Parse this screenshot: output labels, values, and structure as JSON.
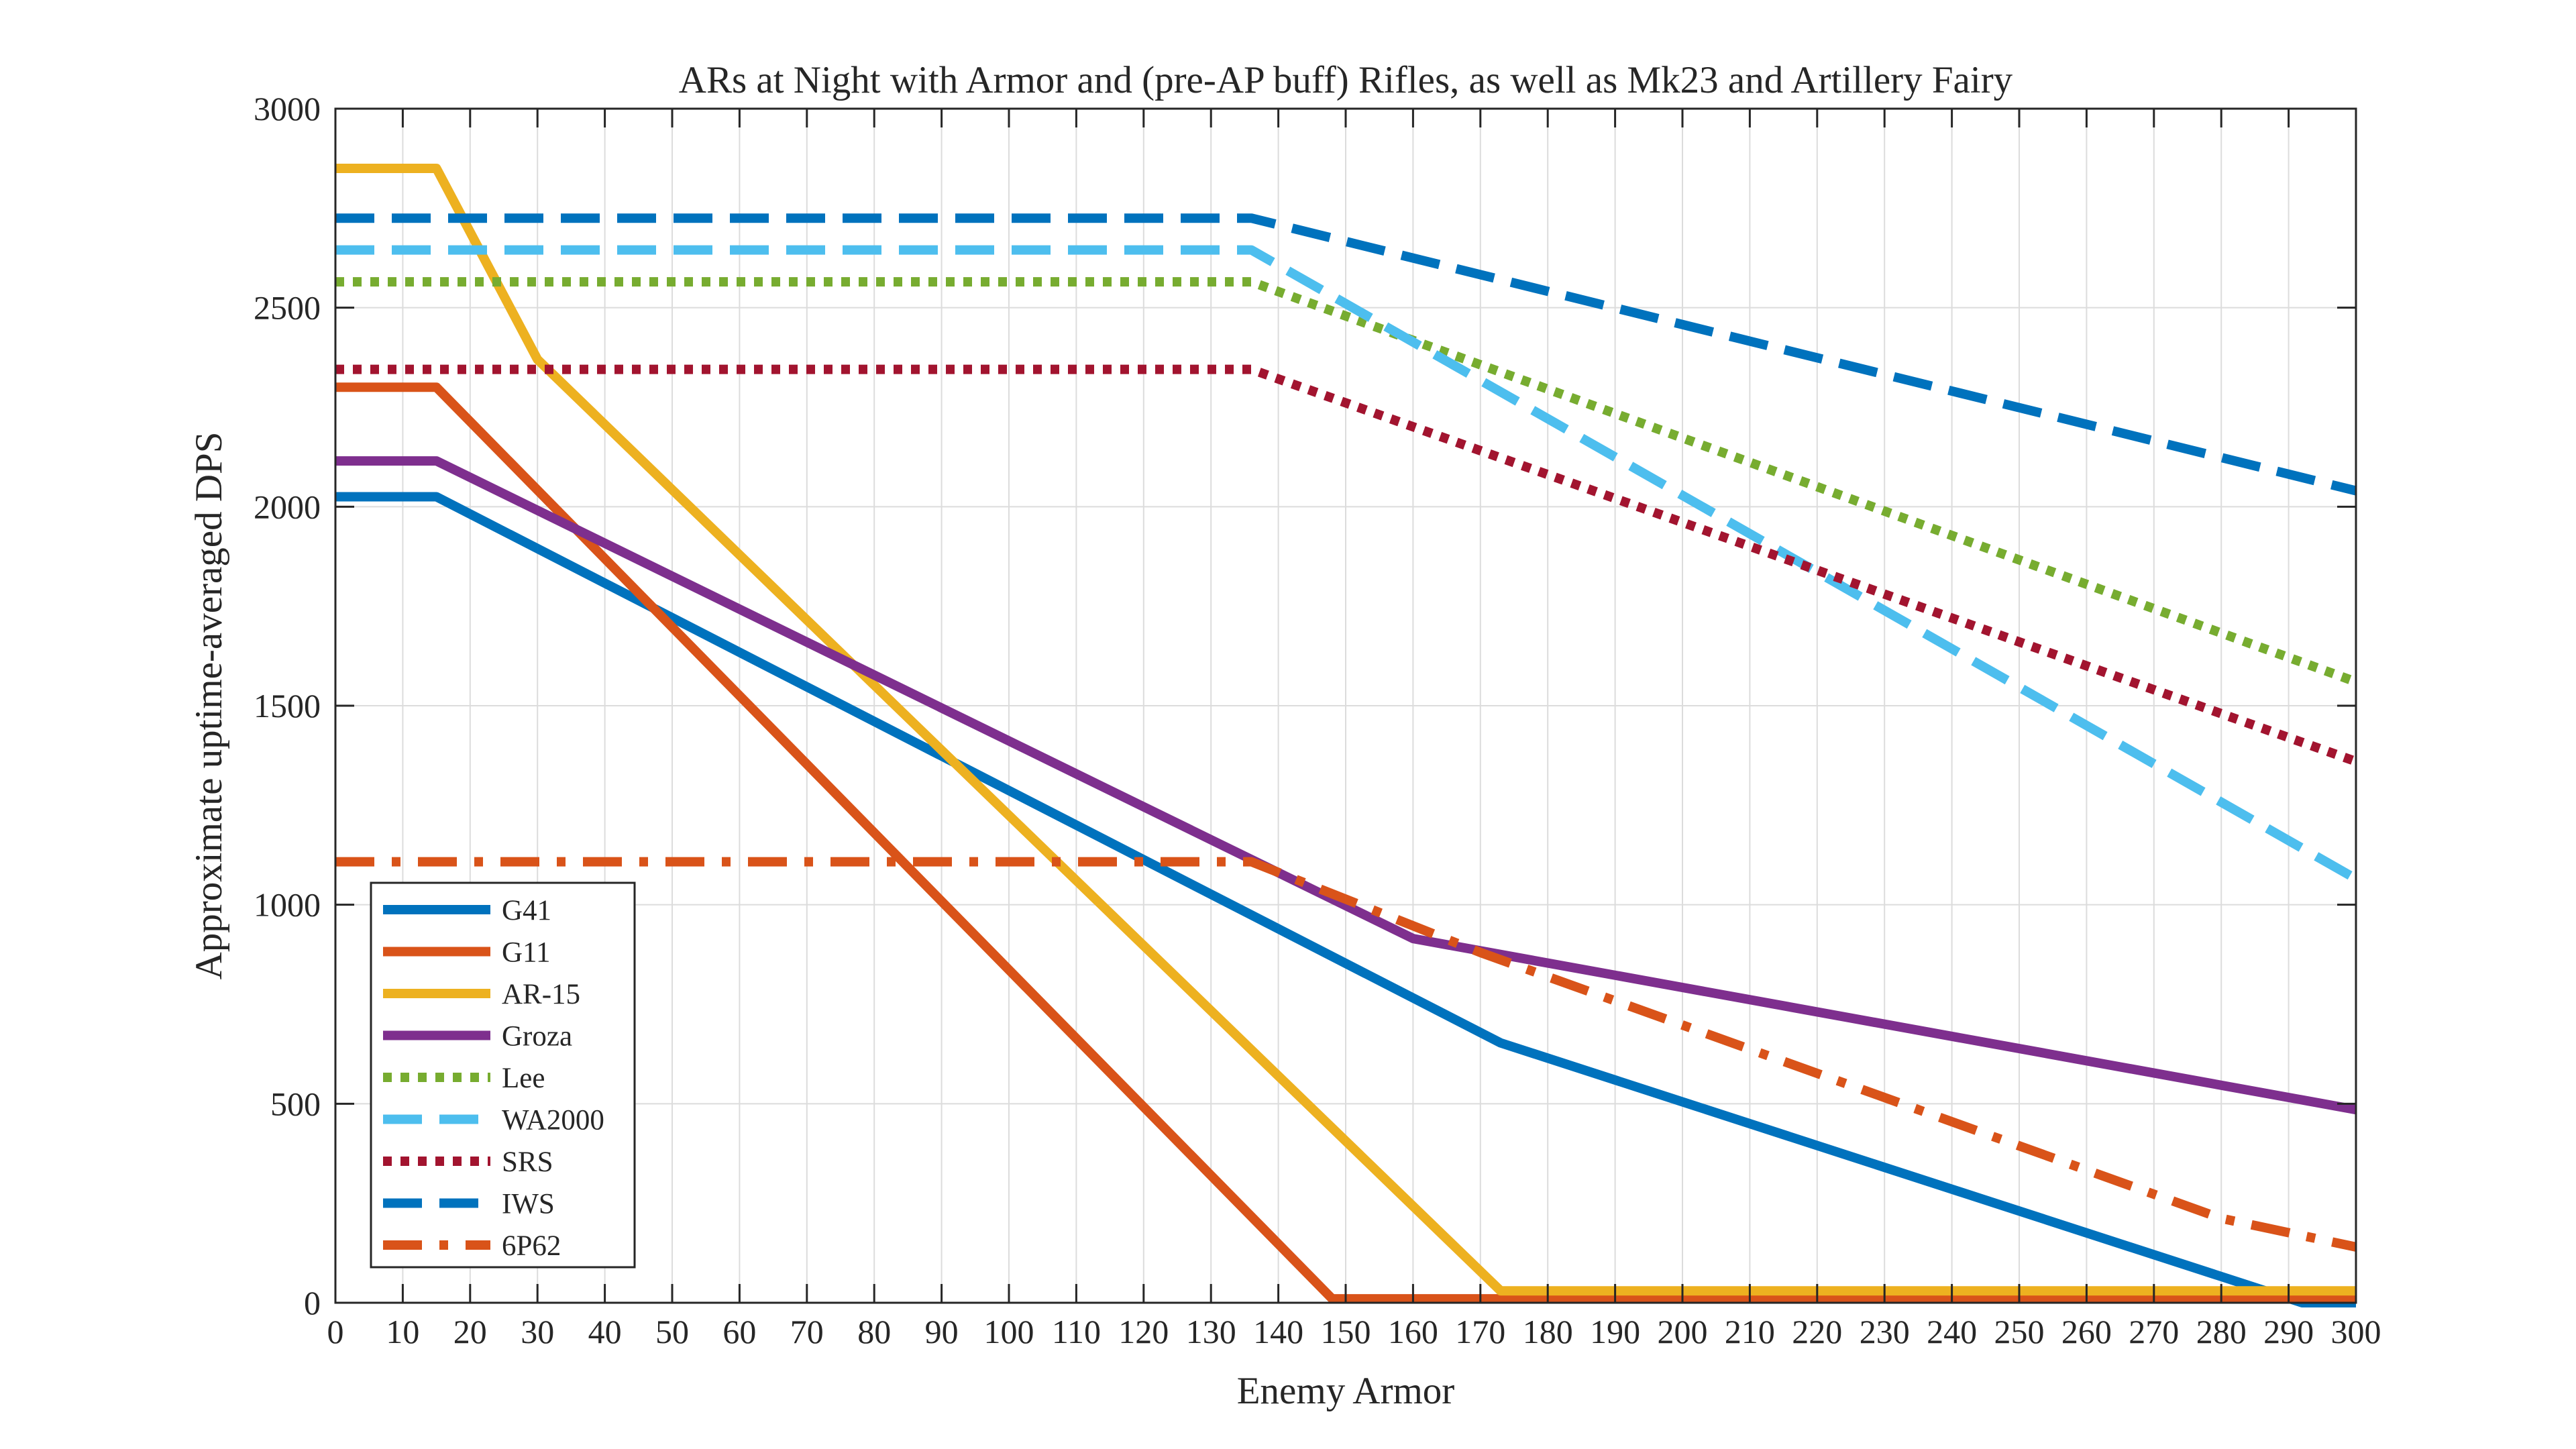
{
  "chart_data": {
    "type": "line",
    "title": "ARs at Night with Armor and (pre-AP buff) Rifles, as well as Mk23 and Artillery Fairy",
    "xlabel": "Enemy Armor",
    "ylabel": "Approximate uptime-averaged DPS",
    "xlim": [
      0,
      300
    ],
    "ylim": [
      0,
      3000
    ],
    "xticks": [
      0,
      10,
      20,
      30,
      40,
      50,
      60,
      70,
      80,
      90,
      100,
      110,
      120,
      130,
      140,
      150,
      160,
      170,
      180,
      190,
      200,
      210,
      220,
      230,
      240,
      250,
      260,
      270,
      280,
      290,
      300
    ],
    "yticks": [
      0,
      500,
      1000,
      1500,
      2000,
      2500,
      3000
    ],
    "grid": true,
    "legend_position": "bottom-left",
    "series": [
      {
        "name": "G41",
        "color": "#0072BD",
        "style": "solid",
        "points": [
          [
            0,
            2025
          ],
          [
            15,
            2025
          ],
          [
            173,
            653
          ],
          [
            292,
            0
          ],
          [
            300,
            0
          ]
        ]
      },
      {
        "name": "G11",
        "color": "#D95319",
        "style": "solid",
        "points": [
          [
            0,
            2300
          ],
          [
            15,
            2300
          ],
          [
            148,
            10
          ],
          [
            300,
            10
          ]
        ]
      },
      {
        "name": "AR-15",
        "color": "#EDB120",
        "style": "solid",
        "points": [
          [
            0,
            2850
          ],
          [
            15,
            2850
          ],
          [
            30,
            2370
          ],
          [
            173,
            30
          ],
          [
            300,
            30
          ]
        ]
      },
      {
        "name": "Groza",
        "color": "#7E2F8E",
        "style": "solid",
        "points": [
          [
            0,
            2115
          ],
          [
            15,
            2115
          ],
          [
            160,
            915
          ],
          [
            173,
            875
          ],
          [
            300,
            485
          ]
        ]
      },
      {
        "name": "Lee",
        "color": "#77AC30",
        "style": "dotted",
        "points": [
          [
            0,
            2565
          ],
          [
            136,
            2565
          ],
          [
            300,
            1560
          ]
        ]
      },
      {
        "name": "WA2000",
        "color": "#4DBEEE",
        "style": "dashed",
        "points": [
          [
            0,
            2645
          ],
          [
            136,
            2645
          ],
          [
            300,
            1065
          ]
        ]
      },
      {
        "name": "SRS",
        "color": "#A2142F",
        "style": "dotted",
        "points": [
          [
            0,
            2345
          ],
          [
            136,
            2345
          ],
          [
            300,
            1360
          ]
        ]
      },
      {
        "name": "IWS",
        "color": "#0072BD",
        "style": "dashed",
        "points": [
          [
            0,
            2725
          ],
          [
            136,
            2725
          ],
          [
            300,
            2040
          ]
        ]
      },
      {
        "name": "6P62",
        "color": "#D95319",
        "style": "dashdot",
        "points": [
          [
            0,
            1108
          ],
          [
            136,
            1108
          ],
          [
            170,
            880
          ],
          [
            280,
            212
          ],
          [
            300,
            140
          ]
        ]
      }
    ]
  }
}
